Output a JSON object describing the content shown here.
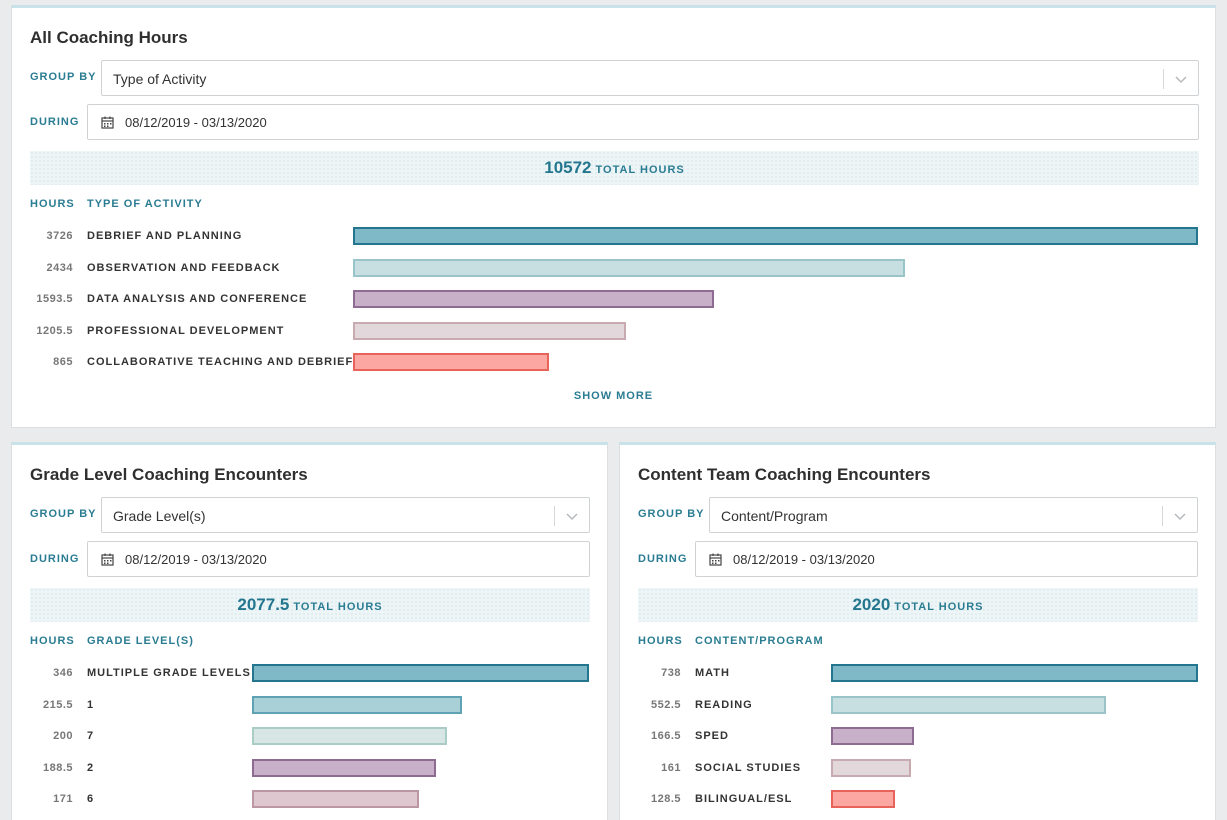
{
  "panels": {
    "all": {
      "title": "All Coaching Hours",
      "group_by_label": "GROUP BY",
      "group_by_value": "Type of Activity",
      "during_label": "DURING",
      "date_range": "08/12/2019 - 03/13/2020",
      "total_value": "10572",
      "total_label": "TOTAL HOURS",
      "col_hours": "HOURS",
      "col_category": "TYPE OF ACTIVITY",
      "show_more": "SHOW MORE",
      "rows": [
        {
          "hours": "3726",
          "name": "DEBRIEF AND PLANNING"
        },
        {
          "hours": "2434",
          "name": "OBSERVATION AND FEEDBACK"
        },
        {
          "hours": "1593.5",
          "name": "DATA ANALYSIS AND CONFERENCE"
        },
        {
          "hours": "1205.5",
          "name": "PROFESSIONAL DEVELOPMENT"
        },
        {
          "hours": "865",
          "name": "COLLABORATIVE TEACHING AND DEBRIEF"
        }
      ]
    },
    "grade": {
      "title": "Grade Level Coaching Encounters",
      "group_by_label": "GROUP BY",
      "group_by_value": "Grade Level(s)",
      "during_label": "DURING",
      "date_range": "08/12/2019 - 03/13/2020",
      "total_value": "2077.5",
      "total_label": "TOTAL HOURS",
      "col_hours": "HOURS",
      "col_category": "GRADE LEVEL(S)",
      "rows": [
        {
          "hours": "346",
          "name": "MULTIPLE GRADE LEVELS"
        },
        {
          "hours": "215.5",
          "name": "1"
        },
        {
          "hours": "200",
          "name": "7"
        },
        {
          "hours": "188.5",
          "name": "2"
        },
        {
          "hours": "171",
          "name": "6"
        }
      ]
    },
    "content": {
      "title": "Content Team Coaching Encounters",
      "group_by_label": "GROUP BY",
      "group_by_value": "Content/Program",
      "during_label": "DURING",
      "date_range": "08/12/2019 - 03/13/2020",
      "total_value": "2020",
      "total_label": "TOTAL HOURS",
      "col_hours": "HOURS",
      "col_category": "CONTENT/PROGRAM",
      "rows": [
        {
          "hours": "738",
          "name": "MATH"
        },
        {
          "hours": "552.5",
          "name": "READING"
        },
        {
          "hours": "166.5",
          "name": "SPED"
        },
        {
          "hours": "161",
          "name": "SOCIAL STUDIES"
        },
        {
          "hours": "128.5",
          "name": "BILINGUAL/ESL"
        }
      ]
    }
  },
  "colors": {
    "accent": "#2a7c92",
    "bar_fills": [
      "#7fb9c8",
      "#c8dfe2",
      "#c7b0c8",
      "#e2d7da",
      "#fca7a1"
    ],
    "bar_borders": [
      "#23768e",
      "#98c4ca",
      "#8f6a92",
      "#c9aab1",
      "#e8635a"
    ],
    "grade_bar_fills": [
      "#7fb9c8",
      "#a9cfd7",
      "#d7e6e3",
      "#c7b0c8",
      "#dfc7cf"
    ],
    "grade_bar_borders": [
      "#23768e",
      "#5fa2b3",
      "#a9ccc6",
      "#8f6a92",
      "#bb96a4"
    ]
  },
  "icons": {
    "calendar": "calendar-icon",
    "chevron": "chevron-down-icon"
  }
}
